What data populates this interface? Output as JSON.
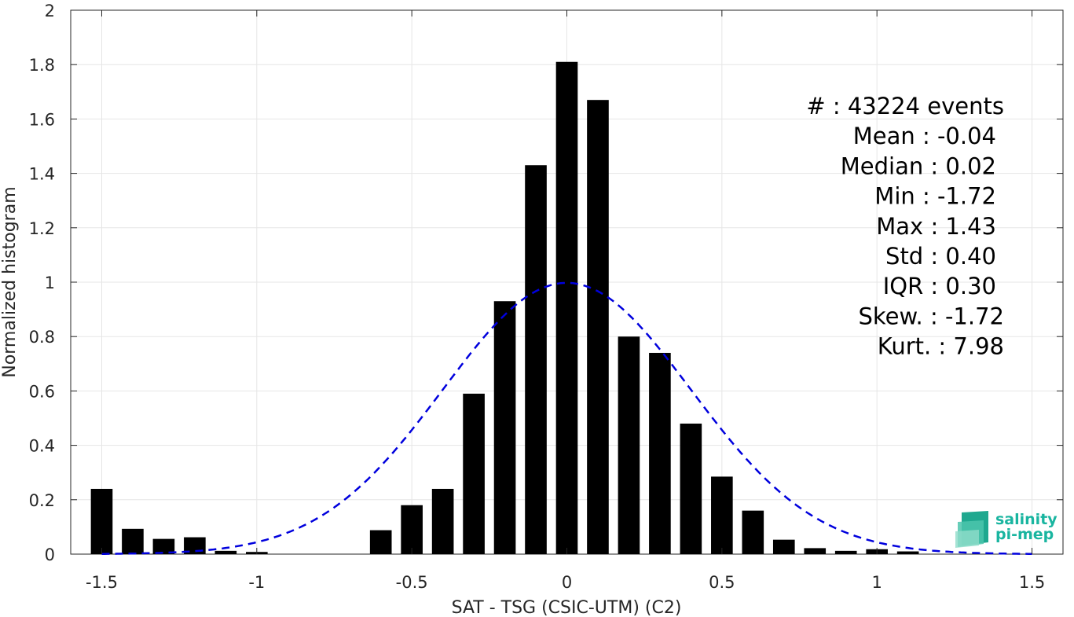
{
  "chart_data": {
    "type": "bar",
    "xlabel": "SAT - TSG (CSIC-UTM) (C2)",
    "ylabel": "Normalized histogram",
    "xlim": [
      -1.6,
      1.6
    ],
    "ylim": [
      0,
      2
    ],
    "xticks": [
      -1.5,
      -1,
      -0.5,
      0,
      0.5,
      1,
      1.5
    ],
    "xtick_labels": [
      "-1.5",
      "-1",
      "-0.5",
      "0",
      "0.5",
      "1",
      "1.5"
    ],
    "yticks": [
      0,
      0.2,
      0.4,
      0.6,
      0.8,
      1,
      1.2,
      1.4,
      1.6,
      1.8,
      2
    ],
    "ytick_labels": [
      "0",
      "0.2",
      "0.4",
      "0.6",
      "0.8",
      "1",
      "1.2",
      "1.4",
      "1.6",
      "1.8",
      "2"
    ],
    "grid": true,
    "bar_width": 0.07,
    "bar_color": "#000000",
    "fit_color": "#0000dd",
    "bins": {
      "x": [
        -1.5,
        -1.4,
        -1.3,
        -1.2,
        -1.1,
        -1.0,
        -0.9,
        -0.8,
        -0.7,
        -0.6,
        -0.5,
        -0.4,
        -0.3,
        -0.2,
        -0.1,
        0.0,
        0.1,
        0.2,
        0.3,
        0.4,
        0.5,
        0.6,
        0.7,
        0.8,
        0.9,
        1.0,
        1.1
      ],
      "values": [
        0.24,
        0.093,
        0.056,
        0.062,
        0.012,
        0.008,
        0,
        0,
        0,
        0.088,
        0.18,
        0.24,
        0.59,
        0.93,
        1.43,
        1.81,
        1.67,
        0.8,
        0.74,
        0.48,
        0.285,
        0.16,
        0.053,
        0.022,
        0.012,
        0.018,
        0.01
      ]
    },
    "normal_fit": {
      "style": "dashed",
      "mean": 0,
      "std": 0.4,
      "x_range": [
        -1.5,
        1.5
      ]
    },
    "stats": [
      "#  : 43224 events",
      "Mean : -0.04",
      "Median : 0.02",
      "Min : -1.72",
      "Max : 1.43",
      "Std : 0.40",
      "IQR : 0.30",
      "Skew. : -1.72",
      "Kurt. : 7.98"
    ]
  },
  "logo": {
    "line1": "salinity",
    "line2": "pi-mep",
    "color": "#19b5a0"
  }
}
